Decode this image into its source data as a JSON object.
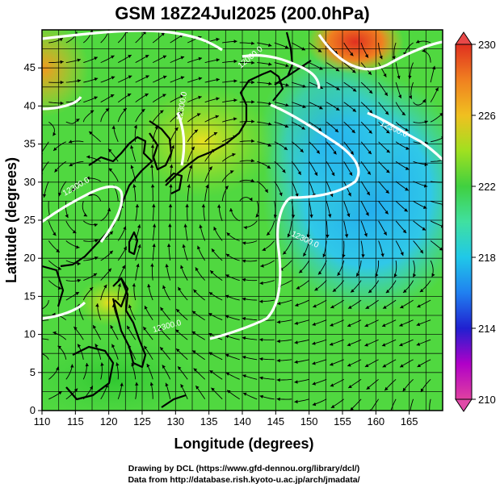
{
  "title": "GSM 18Z24Jul2025 (200.0hPa)",
  "xlabel": "Longitude (degrees)",
  "ylabel": "Latitude (degrees)",
  "x_ticks": [
    "110",
    "115",
    "120",
    "125",
    "130",
    "135",
    "140",
    "145",
    "150",
    "155",
    "160",
    "165"
  ],
  "y_ticks": [
    "0",
    "5",
    "10",
    "15",
    "20",
    "25",
    "30",
    "35",
    "40",
    "45"
  ],
  "colorbar": {
    "ticks": [
      "210",
      "214",
      "218",
      "222",
      "226",
      "230"
    ],
    "min": 210,
    "max": 230,
    "colors": [
      "#e040a0",
      "#b000c8",
      "#2020d0",
      "#2080f0",
      "#20c8e8",
      "#40e0a0",
      "#40d040",
      "#a0e020",
      "#f0c020",
      "#f08020",
      "#e03020"
    ]
  },
  "contour_labels": [
    "12000.0",
    "12300.0",
    "12300.0",
    "12300.0",
    "12300.0",
    "12300.0"
  ],
  "credits": [
    "Drawing by DCL (https://www.gfd-dennou.org/library/dcl/)",
    "Data from http://database.rish.kyoto-u.ac.jp/arch/jmadata/"
  ],
  "chart_data": {
    "type": "heatmap",
    "title": "GSM 18Z24Jul2025 (200.0hPa)",
    "xlabel": "Longitude (degrees)",
    "ylabel": "Latitude (degrees)",
    "xlim": [
      110,
      170
    ],
    "ylim": [
      0,
      50
    ],
    "colorbar_range": [
      210,
      230
    ],
    "grid": true,
    "contour_interval": 300,
    "approx_fields": [
      {
        "region": "NW corner 110-115E 40-50N",
        "value": 226
      },
      {
        "region": "NE max near 157E 47N",
        "value": 229
      },
      {
        "region": "Japan / Korea 125-140E 30-40N",
        "value": 223
      },
      {
        "region": "NW Pacific 150-170E 20-40N",
        "value": 219
      },
      {
        "region": "South China Sea 110-125E 5-25N",
        "value": 222
      },
      {
        "region": "Philippines vicinity 125E 15N",
        "value": 224
      }
    ]
  }
}
